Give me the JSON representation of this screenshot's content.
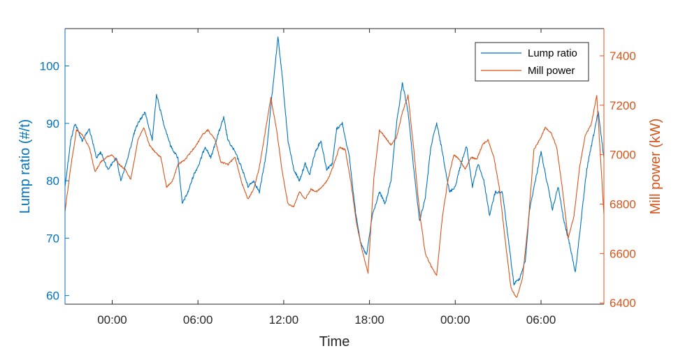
{
  "colors": {
    "left_axis": "#0072BD",
    "right_axis": "#D95319",
    "frame": "#262626",
    "background": "#ffffff"
  },
  "chart_data": {
    "type": "line",
    "title": "",
    "xlabel": "Time",
    "ylabel_left": "Lump ratio (#/t)",
    "ylabel_right": "Mill power (kW)",
    "x_ticks": [
      "00:00",
      "06:00",
      "12:00",
      "18:00",
      "00:00",
      "06:00"
    ],
    "x_tick_hours": [
      24,
      30,
      36,
      42,
      48,
      54
    ],
    "xlim_hours": [
      20.7,
      58.4
    ],
    "ylim_left": [
      58.5,
      106.5
    ],
    "ylim_right": [
      6395,
      7510
    ],
    "yticks_left": [
      60,
      70,
      80,
      90,
      100
    ],
    "yticks_right": [
      6400,
      6600,
      6800,
      7000,
      7200,
      7400
    ],
    "grid": false,
    "legend_position": "top-right",
    "series": [
      {
        "name": "Lump ratio",
        "axis": "left",
        "color": "#0072BD",
        "x": [
          20.7,
          21.1,
          21.4,
          21.9,
          22.4,
          22.9,
          23.2,
          23.7,
          24.3,
          24.6,
          25.1,
          25.5,
          25.8,
          26.3,
          26.8,
          27.1,
          27.6,
          28.1,
          28.6,
          28.9,
          29.3,
          29.7,
          30.1,
          30.5,
          30.9,
          31.4,
          31.8,
          32.1,
          32.6,
          33.1,
          33.5,
          33.9,
          34.3,
          34.8,
          35.1,
          35.6,
          35.9,
          36.3,
          36.7,
          37.1,
          37.5,
          37.8,
          38.2,
          38.6,
          39.0,
          39.4,
          39.7,
          40.1,
          40.6,
          41.0,
          41.4,
          41.8,
          42.2,
          42.7,
          43.1,
          43.5,
          43.9,
          44.3,
          44.7,
          45.1,
          45.5,
          45.9,
          46.3,
          46.7,
          47.1,
          47.6,
          48.0,
          48.4,
          48.8,
          49.2,
          49.6,
          50.0,
          50.4,
          50.8,
          51.3,
          51.7,
          52.1,
          52.5,
          52.9,
          53.2,
          53.6,
          54.0,
          54.4,
          54.8,
          55.2,
          55.6,
          56.0,
          56.4,
          56.8,
          57.2,
          57.6,
          58.0,
          58.4
        ],
        "y": [
          79,
          87,
          90,
          87,
          89,
          84,
          85,
          82,
          84,
          80,
          84,
          88,
          90,
          92,
          87,
          95,
          90,
          86,
          84,
          76,
          78,
          81,
          83,
          86,
          84,
          88,
          91,
          87,
          85,
          82,
          79,
          80,
          78,
          85,
          93,
          105,
          98,
          87,
          82,
          80,
          83,
          81,
          85,
          87,
          82,
          83,
          89,
          90,
          84,
          75,
          69,
          67,
          74,
          78,
          76,
          80,
          90,
          97,
          92,
          82,
          73,
          77,
          86,
          90,
          85,
          78,
          79,
          83,
          86,
          79,
          83,
          80,
          74,
          78,
          78,
          70,
          62,
          63,
          66,
          75,
          80,
          85,
          80,
          75,
          79,
          73,
          69,
          64,
          73,
          82,
          87,
          92,
          84
        ]
      },
      {
        "name": "Mill power",
        "axis": "right",
        "color": "#D95319",
        "x": [
          20.7,
          21.1,
          21.5,
          21.9,
          22.4,
          22.8,
          23.2,
          23.6,
          24.0,
          24.5,
          24.9,
          25.3,
          25.8,
          26.2,
          26.6,
          27.0,
          27.4,
          27.8,
          28.2,
          28.6,
          29.1,
          29.5,
          29.9,
          30.3,
          30.7,
          31.2,
          31.6,
          32.1,
          32.6,
          33.1,
          33.5,
          33.9,
          34.3,
          34.7,
          35.1,
          35.5,
          35.9,
          36.3,
          36.7,
          37.1,
          37.5,
          37.9,
          38.3,
          38.7,
          39.1,
          39.5,
          39.9,
          40.3,
          40.7,
          41.1,
          41.5,
          41.9,
          42.3,
          42.7,
          43.1,
          43.5,
          43.9,
          44.3,
          44.7,
          45.1,
          45.5,
          45.9,
          46.3,
          46.7,
          47.1,
          47.5,
          47.9,
          48.3,
          48.7,
          49.1,
          49.5,
          49.9,
          50.3,
          50.7,
          51.1,
          51.5,
          51.9,
          52.3,
          52.7,
          53.1,
          53.5,
          53.9,
          54.3,
          54.7,
          55.1,
          55.5,
          55.9,
          56.3,
          56.7,
          57.1,
          57.5,
          57.9,
          58.4
        ],
        "y": [
          6770,
          6950,
          7100,
          7080,
          7030,
          6930,
          6970,
          6990,
          7000,
          6960,
          6940,
          6900,
          7060,
          7110,
          7040,
          7010,
          6990,
          6870,
          6890,
          6960,
          6980,
          7010,
          7040,
          7080,
          7100,
          7060,
          6970,
          6960,
          6990,
          6880,
          6820,
          6860,
          6950,
          7090,
          7230,
          7100,
          6930,
          6800,
          6790,
          6850,
          6820,
          6860,
          6850,
          6870,
          6900,
          6960,
          7030,
          7020,
          6890,
          6720,
          6610,
          6520,
          6900,
          7100,
          7070,
          7040,
          7070,
          7170,
          7240,
          7020,
          6770,
          6600,
          6550,
          6510,
          6750,
          6900,
          7000,
          6980,
          6940,
          6990,
          6980,
          7040,
          7060,
          6990,
          6860,
          6650,
          6460,
          6420,
          6500,
          6720,
          7020,
          7060,
          7110,
          7090,
          7030,
          6860,
          6660,
          6750,
          6950,
          7080,
          7120,
          7240,
          6760
        ]
      }
    ]
  }
}
